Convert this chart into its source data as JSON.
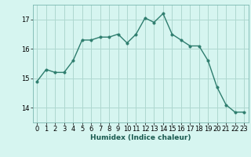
{
  "x": [
    0,
    1,
    2,
    3,
    4,
    5,
    6,
    7,
    8,
    9,
    10,
    11,
    12,
    13,
    14,
    15,
    16,
    17,
    18,
    19,
    20,
    21,
    22,
    23
  ],
  "y": [
    14.9,
    15.3,
    15.2,
    15.2,
    15.6,
    16.3,
    16.3,
    16.4,
    16.4,
    16.5,
    16.2,
    16.5,
    17.05,
    16.9,
    17.2,
    16.5,
    16.3,
    16.1,
    16.1,
    15.6,
    14.7,
    14.1,
    13.85,
    13.85
  ],
  "line_color": "#2e7d6e",
  "marker_color": "#2e7d6e",
  "bg_color": "#d6f5f0",
  "grid_color": "#aed8d0",
  "xlabel": "Humidex (Indice chaleur)",
  "ylim": [
    13.5,
    17.5
  ],
  "xlim": [
    -0.5,
    23.5
  ],
  "yticks": [
    14,
    15,
    16,
    17
  ],
  "xticks": [
    0,
    1,
    2,
    3,
    4,
    5,
    6,
    7,
    8,
    9,
    10,
    11,
    12,
    13,
    14,
    15,
    16,
    17,
    18,
    19,
    20,
    21,
    22,
    23
  ],
  "axis_fontsize": 6.5,
  "tick_fontsize": 6.0,
  "line_width": 1.0,
  "marker_size": 2.5
}
